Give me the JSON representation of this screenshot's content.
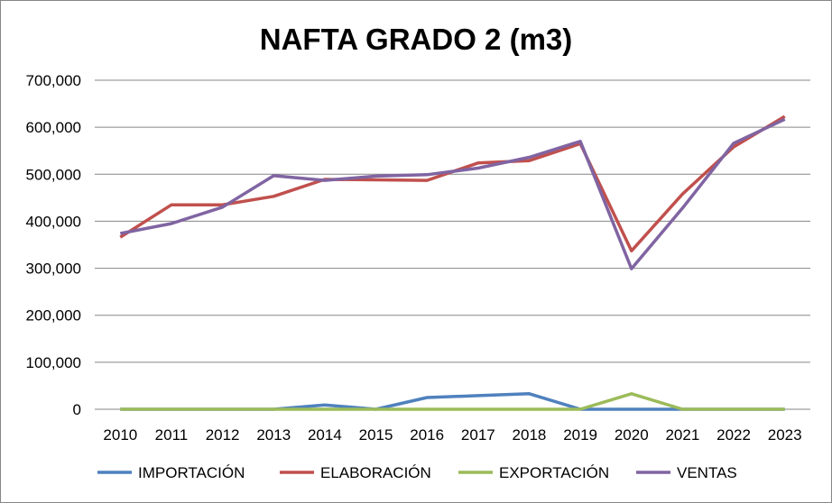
{
  "chart_data": {
    "type": "line",
    "title": "NAFTA GRADO 2 (m3)",
    "xlabel": "",
    "ylabel": "",
    "ylim": [
      0,
      700000
    ],
    "yticks": [
      0,
      100000,
      200000,
      300000,
      400000,
      500000,
      600000,
      700000
    ],
    "ytick_labels": [
      "0",
      "100,000",
      "200,000",
      "300,000",
      "400,000",
      "500,000",
      "600,000",
      "700,000"
    ],
    "grid": true,
    "legend_position": "bottom",
    "categories": [
      "2010",
      "2011",
      "2012",
      "2013",
      "2014",
      "2015",
      "2016",
      "2017",
      "2018",
      "2019",
      "2020",
      "2021",
      "2022",
      "2023"
    ],
    "series": [
      {
        "name": "IMPORTACIÓN",
        "color": "#4F81BD",
        "values": [
          0,
          0,
          0,
          0,
          9000,
          0,
          25000,
          29000,
          33000,
          0,
          0,
          0,
          0,
          0
        ]
      },
      {
        "name": "ELABORACIÓN",
        "color": "#C0504D",
        "values": [
          366000,
          435000,
          435000,
          453000,
          489000,
          488000,
          487000,
          524000,
          529000,
          565000,
          337000,
          458000,
          558000,
          623000
        ]
      },
      {
        "name": "EXPORTACIÓN",
        "color": "#9BBB59",
        "values": [
          0,
          0,
          0,
          0,
          0,
          0,
          0,
          0,
          0,
          0,
          33000,
          0,
          0,
          0
        ]
      },
      {
        "name": "VENTAS",
        "color": "#8064A2",
        "values": [
          374000,
          395000,
          430000,
          497000,
          487000,
          496000,
          499000,
          513000,
          536000,
          570000,
          299000,
          428000,
          566000,
          617000
        ]
      }
    ]
  }
}
